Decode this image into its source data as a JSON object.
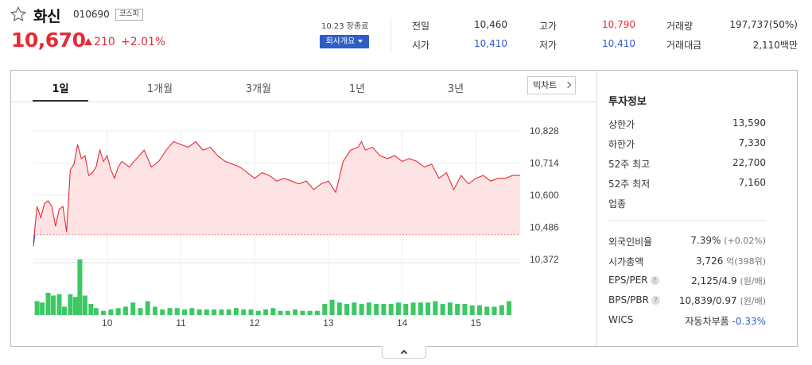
{
  "stock": {
    "name": "화신",
    "code": "010690",
    "market": "코스피",
    "price": "10,670",
    "change_abs": "210",
    "change_pct": "+2.01%",
    "close_label": "10.23 장종료",
    "company_button": "회사개요"
  },
  "quotes": {
    "prev_label": "전일",
    "prev_value": "10,460",
    "open_label": "시가",
    "open_value": "10,410",
    "high_label": "고가",
    "high_value": "10,790",
    "low_label": "저가",
    "low_value": "10,410",
    "volume_label": "거래량",
    "volume_value": "197,737(50%)",
    "amount_label": "거래대금",
    "amount_value": "2,110백만"
  },
  "tabs": [
    "1일",
    "1개월",
    "3개월",
    "1년",
    "3년"
  ],
  "big_chart_label": "빅차트",
  "info": {
    "title": "투자정보",
    "upper_label": "상한가",
    "upper_value": "13,590",
    "lower_label": "하한가",
    "lower_value": "7,330",
    "high52_label": "52주 최고",
    "high52_value": "22,700",
    "low52_label": "52주 최저",
    "low52_value": "7,160",
    "industry_label": "업종",
    "foreign_label": "외국인비율",
    "foreign_value": "7.39%",
    "foreign_sub": "(+0.02%)",
    "mcap_label": "시가총액",
    "mcap_value": "3,726",
    "mcap_sub": "억(398위)",
    "eps_label": "EPS/PER",
    "eps_value": "2,125/4.9",
    "eps_sub": "(원/배)",
    "bps_label": "BPS/PBR",
    "bps_value": "10,839/0.97",
    "bps_sub": "(원/배)",
    "wics_label": "WICS",
    "wics_value": "자동차부품",
    "wics_change": "-0.33%",
    "help_mark": "?"
  },
  "colors": {
    "up": "#e82a34",
    "down": "#2f5bd3",
    "volume": "#3cc864",
    "accent": "#2d5ec8"
  },
  "chart_data": {
    "type": "line",
    "y_ticks": [
      "10,828",
      "10,714",
      "10,600",
      "10,486",
      "10,372"
    ],
    "ylim": [
      10372,
      10828
    ],
    "x_ticks": [
      "10",
      "11",
      "12",
      "13",
      "14",
      "15"
    ],
    "x_range": [
      9.0,
      15.6
    ],
    "prev_close": 10460,
    "price_series": [
      [
        9.0,
        10430
      ],
      [
        9.05,
        10560
      ],
      [
        9.1,
        10520
      ],
      [
        9.15,
        10570
      ],
      [
        9.2,
        10580
      ],
      [
        9.25,
        10560
      ],
      [
        9.3,
        10490
      ],
      [
        9.35,
        10550
      ],
      [
        9.4,
        10560
      ],
      [
        9.45,
        10470
      ],
      [
        9.5,
        10690
      ],
      [
        9.55,
        10710
      ],
      [
        9.6,
        10780
      ],
      [
        9.65,
        10730
      ],
      [
        9.7,
        10740
      ],
      [
        9.75,
        10670
      ],
      [
        9.8,
        10680
      ],
      [
        9.85,
        10700
      ],
      [
        9.9,
        10760
      ],
      [
        9.95,
        10720
      ],
      [
        10.0,
        10740
      ],
      [
        10.05,
        10690
      ],
      [
        10.1,
        10660
      ],
      [
        10.15,
        10700
      ],
      [
        10.2,
        10720
      ],
      [
        10.3,
        10700
      ],
      [
        10.4,
        10730
      ],
      [
        10.5,
        10760
      ],
      [
        10.6,
        10700
      ],
      [
        10.7,
        10720
      ],
      [
        10.8,
        10760
      ],
      [
        10.9,
        10790
      ],
      [
        11.0,
        10780
      ],
      [
        11.1,
        10770
      ],
      [
        11.2,
        10790
      ],
      [
        11.3,
        10760
      ],
      [
        11.4,
        10770
      ],
      [
        11.5,
        10740
      ],
      [
        11.6,
        10720
      ],
      [
        11.7,
        10710
      ],
      [
        11.8,
        10700
      ],
      [
        11.9,
        10680
      ],
      [
        12.0,
        10660
      ],
      [
        12.1,
        10680
      ],
      [
        12.2,
        10670
      ],
      [
        12.3,
        10650
      ],
      [
        12.4,
        10660
      ],
      [
        12.5,
        10650
      ],
      [
        12.6,
        10640
      ],
      [
        12.7,
        10650
      ],
      [
        12.8,
        10620
      ],
      [
        12.9,
        10640
      ],
      [
        13.0,
        10650
      ],
      [
        13.1,
        10610
      ],
      [
        13.2,
        10720
      ],
      [
        13.3,
        10760
      ],
      [
        13.4,
        10770
      ],
      [
        13.45,
        10790
      ],
      [
        13.5,
        10760
      ],
      [
        13.6,
        10770
      ],
      [
        13.7,
        10740
      ],
      [
        13.8,
        10730
      ],
      [
        13.9,
        10740
      ],
      [
        14.0,
        10720
      ],
      [
        14.1,
        10730
      ],
      [
        14.2,
        10720
      ],
      [
        14.3,
        10700
      ],
      [
        14.4,
        10710
      ],
      [
        14.5,
        10660
      ],
      [
        14.6,
        10680
      ],
      [
        14.7,
        10620
      ],
      [
        14.8,
        10670
      ],
      [
        14.9,
        10640
      ],
      [
        15.0,
        10660
      ],
      [
        15.1,
        10670
      ],
      [
        15.2,
        10650
      ],
      [
        15.3,
        10660
      ],
      [
        15.4,
        10660
      ],
      [
        15.5,
        10670
      ],
      [
        15.6,
        10670
      ]
    ],
    "volume_series": [
      [
        9.05,
        10
      ],
      [
        9.12,
        9
      ],
      [
        9.2,
        16
      ],
      [
        9.27,
        14
      ],
      [
        9.35,
        15
      ],
      [
        9.42,
        6
      ],
      [
        9.5,
        15
      ],
      [
        9.57,
        13
      ],
      [
        9.63,
        40
      ],
      [
        9.7,
        14
      ],
      [
        9.78,
        8
      ],
      [
        9.85,
        5
      ],
      [
        9.95,
        3
      ],
      [
        10.05,
        4
      ],
      [
        10.15,
        5
      ],
      [
        10.25,
        6
      ],
      [
        10.35,
        9
      ],
      [
        10.45,
        5
      ],
      [
        10.55,
        10
      ],
      [
        10.65,
        6
      ],
      [
        10.75,
        4
      ],
      [
        10.85,
        5
      ],
      [
        10.95,
        5
      ],
      [
        11.05,
        4
      ],
      [
        11.15,
        5
      ],
      [
        11.25,
        4
      ],
      [
        11.35,
        4
      ],
      [
        11.45,
        4
      ],
      [
        11.55,
        4
      ],
      [
        11.65,
        4
      ],
      [
        11.75,
        5
      ],
      [
        11.85,
        4
      ],
      [
        11.95,
        4
      ],
      [
        12.05,
        3
      ],
      [
        12.15,
        4
      ],
      [
        12.25,
        5
      ],
      [
        12.35,
        3
      ],
      [
        12.45,
        3
      ],
      [
        12.55,
        4
      ],
      [
        12.65,
        3
      ],
      [
        12.75,
        3
      ],
      [
        12.85,
        3
      ],
      [
        12.95,
        8
      ],
      [
        13.05,
        11
      ],
      [
        13.15,
        9
      ],
      [
        13.25,
        8
      ],
      [
        13.35,
        9
      ],
      [
        13.45,
        8
      ],
      [
        13.55,
        9
      ],
      [
        13.65,
        8
      ],
      [
        13.75,
        8
      ],
      [
        13.85,
        8
      ],
      [
        13.95,
        9
      ],
      [
        14.05,
        8
      ],
      [
        14.15,
        9
      ],
      [
        14.25,
        9
      ],
      [
        14.35,
        9
      ],
      [
        14.45,
        10
      ],
      [
        14.55,
        8
      ],
      [
        14.65,
        9
      ],
      [
        14.75,
        8
      ],
      [
        14.85,
        8
      ],
      [
        14.95,
        7
      ],
      [
        15.05,
        7
      ],
      [
        15.15,
        6
      ],
      [
        15.25,
        6
      ],
      [
        15.35,
        7
      ],
      [
        15.45,
        10
      ]
    ]
  }
}
